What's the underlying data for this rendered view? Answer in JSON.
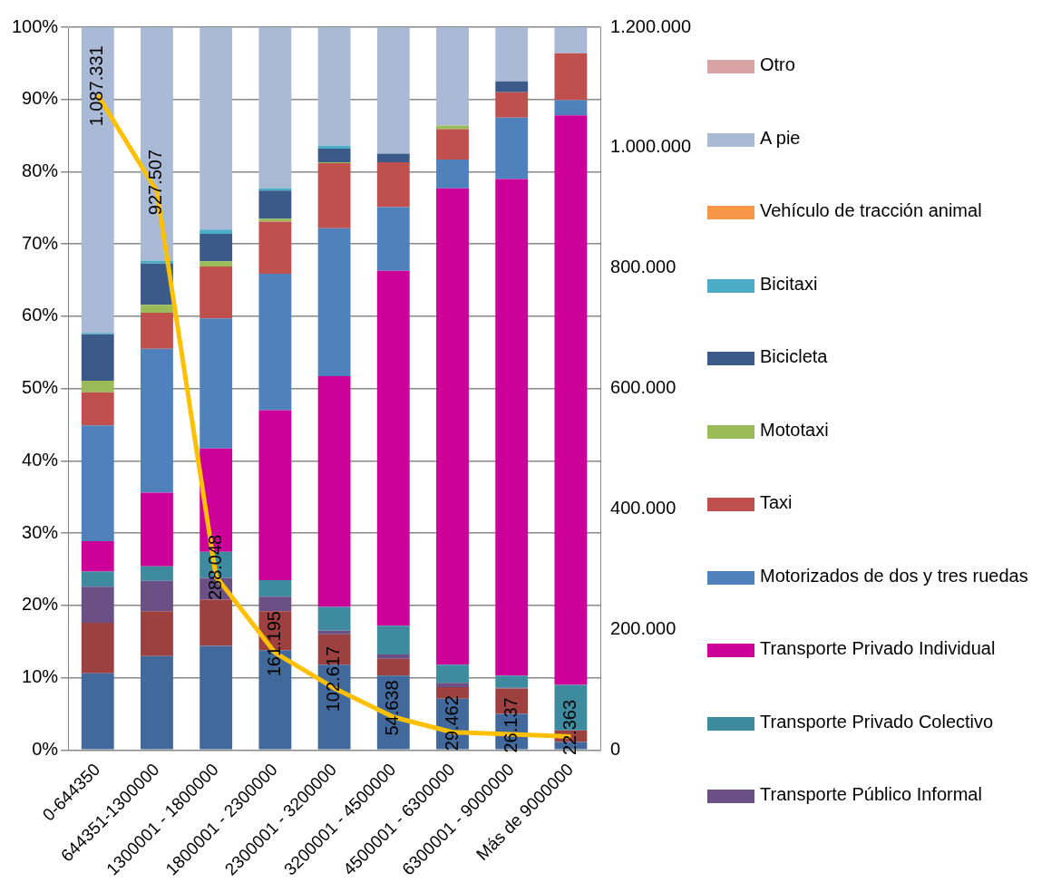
{
  "chart_data": {
    "type": "bar",
    "stacked": true,
    "grid": "y",
    "legend": "right",
    "marker": "none",
    "categories": [
      "0-644350",
      "644351-1300000",
      "1300001 - 1800000",
      "1800001 - 2300000",
      "2300001 - 3200000",
      "3200001 - 4500000",
      "4500001 - 6300000",
      "6300001 - 9000000",
      "Más de 9000000"
    ],
    "ylim": [
      0,
      100
    ],
    "yticks": [
      {
        "value": 0,
        "label": "0%"
      },
      {
        "value": 10,
        "label": "10%"
      },
      {
        "value": 20,
        "label": "20%"
      },
      {
        "value": 30,
        "label": "30%"
      },
      {
        "value": 40,
        "label": "40%"
      },
      {
        "value": 50,
        "label": "50%"
      },
      {
        "value": 60,
        "label": "60%"
      },
      {
        "value": 70,
        "label": "70%"
      },
      {
        "value": 80,
        "label": "80%"
      },
      {
        "value": 90,
        "label": "90%"
      },
      {
        "value": 100,
        "label": "100%"
      }
    ],
    "y2lim": [
      0,
      1200000
    ],
    "y2ticks": [
      {
        "value": 0,
        "label": "0"
      },
      {
        "value": 200000,
        "label": "200.000"
      },
      {
        "value": 400000,
        "label": "400.000"
      },
      {
        "value": 600000,
        "label": "600.000"
      },
      {
        "value": 800000,
        "label": "800.000"
      },
      {
        "value": 1000000,
        "label": "1.000.000"
      },
      {
        "value": 1200000,
        "label": "1.200.000"
      }
    ],
    "series": [
      {
        "color": "#41699b",
        "values": [
          10.6,
          13.0,
          14.4,
          13.8,
          11.8,
          10.3,
          7.1,
          5.0,
          1.1
        ]
      },
      {
        "color": "#9d4040",
        "values": [
          7.0,
          6.2,
          6.4,
          5.4,
          4.2,
          2.3,
          1.6,
          3.5,
          1.6
        ]
      },
      {
        "name": "Transporte Público Informal",
        "color": "#6a5084",
        "values": [
          5.0,
          4.2,
          3.0,
          2.0,
          0.5,
          0.6,
          0.6,
          0.1,
          0
        ]
      },
      {
        "name": "Transporte Privado Colectivo",
        "color": "#3e8ba0",
        "values": [
          2.1,
          2.0,
          3.6,
          2.3,
          3.3,
          4.0,
          2.5,
          1.7,
          6.3
        ]
      },
      {
        "name": "Transporte Privado Individual",
        "color": "#cc0099",
        "values": [
          4.2,
          10.2,
          14.3,
          23.5,
          31.9,
          49.1,
          65.9,
          68.7,
          78.8
        ]
      },
      {
        "name": "Motorizados de dos y tres ruedas",
        "color": "#4f81bd",
        "values": [
          16.0,
          19.9,
          18.0,
          18.9,
          20.5,
          8.8,
          4.0,
          8.5,
          2.1
        ]
      },
      {
        "name": "Taxi",
        "color": "#c0504d",
        "values": [
          4.6,
          5.0,
          7.2,
          7.2,
          9.0,
          6.2,
          4.2,
          3.5,
          6.5
        ]
      },
      {
        "name": "Mototaxi",
        "color": "#9bbb59",
        "values": [
          1.6,
          1.1,
          0.7,
          0.4,
          0.1,
          0,
          0.5,
          0,
          0
        ]
      },
      {
        "name": "Bicicleta",
        "color": "#3b5a8a",
        "values": [
          6.4,
          5.7,
          3.8,
          3.9,
          1.9,
          1.2,
          0,
          1.5,
          0
        ]
      },
      {
        "name": "Bicitaxi",
        "color": "#4bacc6",
        "values": [
          0.2,
          0.4,
          0.6,
          0.3,
          0.4,
          0,
          0,
          0,
          0
        ]
      },
      {
        "name": "Vehículo de tracción animal",
        "color": "#f79646",
        "values": [
          0,
          0,
          0,
          0,
          0,
          0,
          0,
          0,
          0
        ]
      },
      {
        "name": "A pie",
        "color": "#aab9d6",
        "values": [
          42.3,
          32.3,
          28.0,
          22.3,
          16.4,
          17.5,
          13.6,
          7.5,
          3.6
        ]
      },
      {
        "name": "Otro",
        "color": "#d9a3a6",
        "values": [
          0,
          0,
          0,
          0,
          0,
          0,
          0,
          0,
          0
        ]
      },
      {
        "type": "line",
        "axis": "y2",
        "color": "#ffc000",
        "values": [
          1087331,
          927507,
          288048,
          161195,
          102617,
          54638,
          29462,
          26137,
          22363
        ],
        "value_labels": [
          "1.087.331",
          "927.507",
          "288.048",
          "161.195",
          "102.617",
          "54.638",
          "29.462",
          "26.137",
          "22.363"
        ]
      }
    ]
  }
}
